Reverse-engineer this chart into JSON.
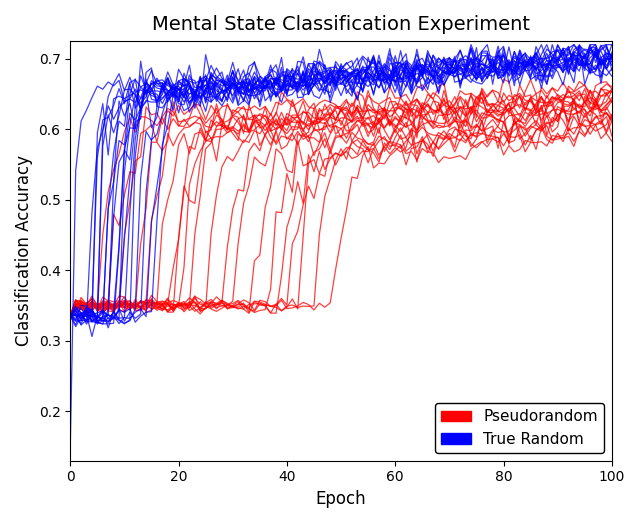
{
  "title": "Mental State Classification Experiment",
  "xlabel": "Epoch",
  "ylabel": "Classification Accuracy",
  "xlim": [
    0,
    100
  ],
  "ylim": [
    0.13,
    0.725
  ],
  "yticks": [
    0.2,
    0.3,
    0.4,
    0.5,
    0.6,
    0.7
  ],
  "xticks": [
    0,
    20,
    40,
    60,
    80,
    100
  ],
  "n_epochs": 100,
  "pseudo_color": "#ff0000",
  "true_color": "#0000ff",
  "legend_labels": [
    "Pseudorandom",
    "True Random"
  ],
  "figsize": [
    6.4,
    5.23
  ],
  "dpi": 100,
  "title_fontsize": 14,
  "axis_fontsize": 12
}
